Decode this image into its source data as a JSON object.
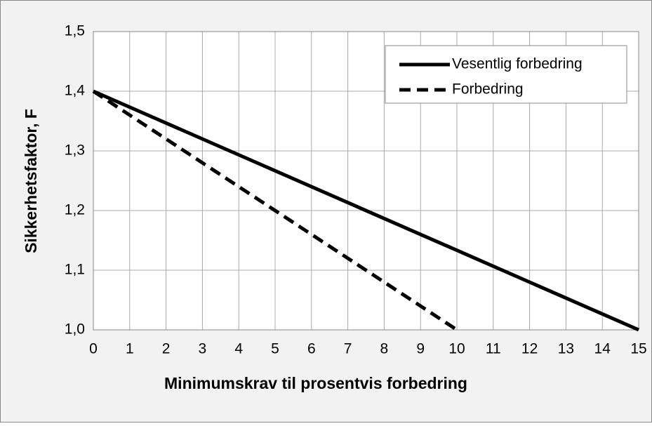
{
  "chart_data": {
    "type": "line",
    "ylabel": "Sikkerhetsfaktor, F",
    "xlabel": "Minimumskrav til prosentvis forbedring",
    "xlim": [
      0,
      15
    ],
    "xticks": [
      0,
      1,
      2,
      3,
      4,
      5,
      6,
      7,
      8,
      9,
      10,
      11,
      12,
      13,
      14,
      15
    ],
    "ylim": [
      1.0,
      1.5
    ],
    "yticks": [
      {
        "value": 1.0,
        "label": "1,0"
      },
      {
        "value": 1.1,
        "label": "1,1"
      },
      {
        "value": 1.2,
        "label": "1,2"
      },
      {
        "value": 1.3,
        "label": "1,3"
      },
      {
        "value": 1.4,
        "label": "1,4"
      },
      {
        "value": 1.5,
        "label": "1,5"
      }
    ],
    "grid": true,
    "legend": "upper right",
    "series": [
      {
        "name": "Vesentlig forbedring",
        "color": "#000000",
        "dash": "solid",
        "x": [
          0,
          15
        ],
        "values": [
          1.4,
          1.0
        ]
      },
      {
        "name": "Forbedring",
        "color": "#000000",
        "dash": "dashed",
        "x": [
          0,
          10
        ],
        "values": [
          1.4,
          1.0
        ]
      }
    ]
  }
}
